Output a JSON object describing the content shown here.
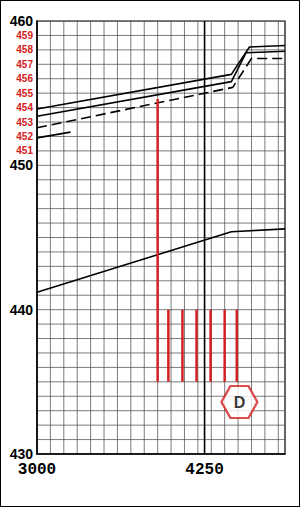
{
  "chart_data": {
    "type": "line",
    "xlim": [
      3000,
      4850
    ],
    "xticks": [
      3000,
      4250
    ],
    "ylim": [
      430,
      460
    ],
    "yticks": [
      430,
      440,
      450,
      451,
      452,
      453,
      454,
      455,
      456,
      457,
      458,
      459,
      460
    ],
    "grid": true,
    "series": [
      {
        "color": "#000000",
        "line_style": "solid",
        "x": [
          3000,
          4450,
          4585,
          4850
        ],
        "values": [
          453.9,
          456.3,
          458.2,
          458.3
        ]
      },
      {
        "color": "#000000",
        "line_style": "solid",
        "x": [
          3000,
          4450,
          4560,
          4850
        ],
        "values": [
          453.4,
          455.8,
          457.8,
          457.9
        ]
      },
      {
        "color": "#000000",
        "line_style": "dashed",
        "x": [
          3000,
          4460,
          4600,
          4850
        ],
        "values": [
          452.6,
          455.4,
          457.4,
          457.4
        ]
      },
      {
        "color": "#000000",
        "line_style": "solid",
        "x": [
          3000,
          3250
        ],
        "values": [
          451.9,
          452.3
        ]
      },
      {
        "color": "#000000",
        "line_style": "solid",
        "x": [
          3000,
          4450,
          4850
        ],
        "values": [
          441.2,
          445.4,
          445.6
        ]
      },
      {
        "color": "#000000",
        "line_style": "solid",
        "x": [
          4250,
          4250
        ],
        "values": [
          430,
          460
        ]
      },
      {
        "color": "#d42020",
        "line_style": "solid",
        "x": [
          3900,
          3900
        ],
        "values": [
          454.6,
          435
        ]
      },
      {
        "color": "#d42020",
        "line_style": "solid",
        "x": [
          3980,
          3980
        ],
        "values": [
          440,
          435
        ]
      },
      {
        "color": "#d42020",
        "line_style": "solid",
        "x": [
          4085,
          4085
        ],
        "values": [
          440,
          435
        ]
      },
      {
        "color": "#d42020",
        "line_style": "solid",
        "x": [
          4190,
          4190
        ],
        "values": [
          440,
          435
        ]
      },
      {
        "color": "#d42020",
        "line_style": "solid",
        "x": [
          4295,
          4295
        ],
        "values": [
          440,
          435
        ]
      },
      {
        "color": "#d42020",
        "line_style": "solid",
        "x": [
          4400,
          4400
        ],
        "values": [
          440,
          435
        ]
      },
      {
        "color": "#d42020",
        "line_style": "solid",
        "x": [
          4490,
          4490
        ],
        "values": [
          440,
          435
        ]
      }
    ],
    "annotations": [
      {
        "text": "D",
        "x": 4510,
        "y": 433.6,
        "marker": "hexagon",
        "color": "#d42020"
      }
    ]
  }
}
